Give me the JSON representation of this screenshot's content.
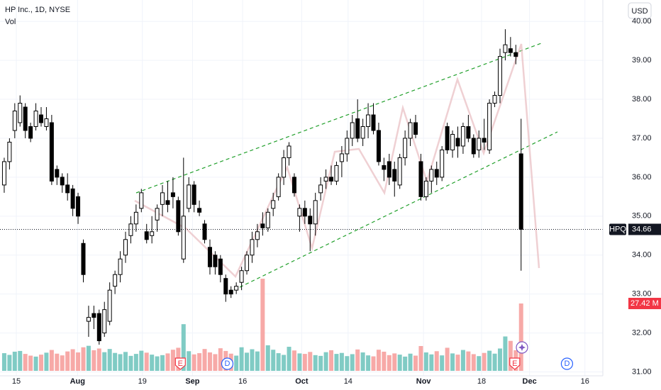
{
  "chart_data": {
    "type": "candlestick",
    "title": "HP Inc., 1D, NYSE",
    "subtitle": "Vol",
    "currency": "USD",
    "symbol": "HPQ",
    "last_price": 34.66,
    "last_price_label": "34.66",
    "last_volume_label": "27.42 M",
    "up_color": "#ffffff",
    "down_color": "#000000",
    "outline_color": "#000000",
    "volume_up_color": "#80cbc4",
    "volume_down_color": "#f7a9a7",
    "grid": true,
    "xlim": [
      -0.8,
      113.5
    ],
    "ylim": [
      30.9,
      40.55
    ],
    "xticks": [
      {
        "value": 2.3,
        "label": "15"
      },
      {
        "value": 13.9,
        "label": "Aug"
      },
      {
        "value": 26.2,
        "label": "19"
      },
      {
        "value": 35.7,
        "label": "Sep"
      },
      {
        "value": 45.2,
        "label": "16"
      },
      {
        "value": 56.4,
        "label": "Oct"
      },
      {
        "value": 65.2,
        "label": "14"
      },
      {
        "value": 79.5,
        "label": "Nov"
      },
      {
        "value": 90.5,
        "label": "18"
      },
      {
        "value": 99.6,
        "label": "Dec"
      },
      {
        "value": 110.1,
        "label": "16"
      }
    ],
    "yticks": [
      {
        "value": 31,
        "label": "31.00"
      },
      {
        "value": 32,
        "label": "32.00"
      },
      {
        "value": 33,
        "label": "33.00"
      },
      {
        "value": 34,
        "label": "34.00"
      },
      {
        "value": 35,
        "label": "35.00"
      },
      {
        "value": 36,
        "label": "36.00"
      },
      {
        "value": 37,
        "label": "37.00"
      },
      {
        "value": 38,
        "label": "38.00"
      },
      {
        "value": 39,
        "label": "39.00"
      },
      {
        "value": 40,
        "label": "40.00"
      }
    ],
    "candles": [
      [
        35.8,
        36.5,
        35.6,
        36.4
      ],
      [
        36.4,
        37.0,
        36.2,
        36.9
      ],
      [
        37.2,
        37.9,
        37.0,
        37.7
      ],
      [
        37.4,
        38.1,
        37.3,
        37.9
      ],
      [
        37.8,
        37.9,
        37.0,
        37.2
      ],
      [
        37.3,
        37.4,
        36.9,
        37.0
      ],
      [
        37.3,
        37.9,
        37.2,
        37.7
      ],
      [
        37.6,
        37.8,
        37.3,
        37.4
      ],
      [
        37.3,
        37.8,
        37.2,
        37.5
      ],
      [
        37.4,
        37.6,
        35.8,
        35.9
      ],
      [
        36.2,
        36.3,
        35.8,
        36.0
      ],
      [
        36.0,
        36.1,
        35.6,
        35.8
      ],
      [
        35.8,
        36.1,
        35.4,
        35.6
      ],
      [
        35.7,
        35.8,
        35.0,
        35.2
      ],
      [
        35.5,
        35.6,
        34.8,
        35.0
      ],
      [
        34.3,
        34.4,
        33.3,
        33.5
      ],
      [
        32.3,
        32.7,
        31.9,
        32.4
      ],
      [
        32.5,
        32.7,
        32.1,
        32.4
      ],
      [
        32.5,
        32.6,
        31.7,
        31.8
      ],
      [
        32.0,
        32.8,
        31.9,
        32.6
      ],
      [
        32.3,
        33.3,
        32.2,
        33.1
      ],
      [
        33.2,
        33.6,
        33.0,
        33.5
      ],
      [
        33.5,
        34.1,
        33.3,
        33.9
      ],
      [
        34.0,
        34.6,
        33.8,
        34.4
      ],
      [
        34.5,
        35.0,
        34.3,
        34.8
      ],
      [
        34.8,
        35.3,
        34.6,
        35.1
      ],
      [
        35.2,
        35.7,
        35.1,
        35.6
      ],
      [
        34.6,
        34.8,
        34.3,
        34.4
      ],
      [
        34.5,
        35.0,
        34.3,
        34.6
      ],
      [
        34.9,
        35.3,
        34.6,
        35.2
      ],
      [
        35.3,
        35.8,
        35.0,
        35.6
      ],
      [
        35.4,
        35.9,
        35.1,
        35.3
      ],
      [
        35.6,
        36.0,
        35.2,
        35.5
      ],
      [
        35.4,
        35.5,
        34.5,
        34.6
      ],
      [
        33.9,
        36.5,
        33.8,
        35.0
      ],
      [
        35.2,
        36.0,
        35.1,
        35.8
      ],
      [
        35.8,
        35.9,
        35.1,
        35.3
      ],
      [
        35.2,
        35.4,
        35.0,
        35.1
      ],
      [
        34.8,
        34.9,
        34.3,
        34.4
      ],
      [
        34.2,
        34.4,
        33.5,
        33.7
      ],
      [
        34.0,
        34.1,
        33.5,
        33.7
      ],
      [
        33.9,
        34.0,
        33.3,
        33.5
      ],
      [
        33.4,
        33.5,
        32.8,
        33.0
      ],
      [
        33.1,
        33.2,
        32.9,
        33.0
      ],
      [
        33.1,
        33.3,
        33.0,
        33.2
      ],
      [
        33.3,
        33.7,
        33.1,
        33.6
      ],
      [
        33.6,
        34.1,
        33.5,
        34.0
      ],
      [
        34.0,
        34.6,
        33.8,
        34.4
      ],
      [
        34.4,
        34.8,
        34.2,
        34.6
      ],
      [
        34.8,
        35.1,
        34.5,
        34.7
      ],
      [
        34.7,
        35.2,
        34.6,
        35.1
      ],
      [
        35.2,
        35.6,
        35.0,
        35.4
      ],
      [
        35.5,
        36.1,
        35.4,
        36.0
      ],
      [
        36.0,
        36.7,
        35.8,
        36.5
      ],
      [
        36.5,
        36.9,
        36.3,
        36.8
      ],
      [
        36.0,
        36.1,
        35.5,
        35.6
      ],
      [
        35.0,
        35.3,
        34.6,
        35.2
      ],
      [
        35.2,
        35.4,
        34.8,
        35.0
      ],
      [
        35.0,
        35.2,
        34.1,
        34.8
      ],
      [
        34.8,
        35.6,
        34.5,
        35.4
      ],
      [
        35.6,
        36.0,
        35.4,
        35.8
      ],
      [
        35.9,
        36.2,
        35.7,
        36.0
      ],
      [
        36.0,
        36.3,
        35.8,
        35.9
      ],
      [
        35.9,
        36.4,
        35.8,
        36.3
      ],
      [
        36.4,
        36.8,
        36.0,
        36.6
      ],
      [
        36.6,
        37.2,
        36.4,
        37.0
      ],
      [
        37.0,
        37.6,
        36.8,
        37.4
      ],
      [
        37.5,
        38.0,
        36.9,
        37.0
      ],
      [
        37.0,
        37.5,
        36.8,
        37.3
      ],
      [
        37.3,
        37.9,
        37.0,
        37.6
      ],
      [
        37.6,
        37.9,
        37.1,
        37.2
      ],
      [
        37.2,
        37.4,
        36.3,
        36.4
      ],
      [
        36.3,
        36.5,
        35.9,
        36.2
      ],
      [
        36.4,
        36.6,
        35.8,
        36.0
      ],
      [
        36.2,
        36.4,
        35.5,
        35.9
      ],
      [
        35.8,
        36.6,
        35.7,
        36.5
      ],
      [
        36.5,
        37.2,
        36.3,
        37.0
      ],
      [
        37.0,
        37.5,
        36.8,
        37.4
      ],
      [
        37.4,
        37.6,
        37.0,
        37.1
      ],
      [
        36.4,
        36.6,
        35.4,
        35.5
      ],
      [
        35.5,
        36.0,
        35.4,
        35.9
      ],
      [
        35.9,
        36.3,
        35.6,
        36.2
      ],
      [
        36.2,
        36.4,
        35.8,
        36.0
      ],
      [
        36.0,
        36.8,
        35.9,
        36.7
      ],
      [
        37.3,
        37.4,
        36.6,
        36.7
      ],
      [
        36.7,
        37.2,
        36.5,
        37.1
      ],
      [
        37.0,
        37.3,
        36.5,
        36.8
      ],
      [
        36.8,
        37.4,
        36.6,
        37.3
      ],
      [
        37.3,
        37.6,
        36.9,
        37.0
      ],
      [
        37.0,
        37.1,
        36.5,
        36.6
      ],
      [
        36.7,
        37.2,
        36.5,
        37.0
      ],
      [
        37.0,
        37.5,
        36.7,
        36.9
      ],
      [
        36.7,
        38.0,
        36.6,
        37.9
      ],
      [
        37.9,
        38.2,
        37.8,
        38.1
      ],
      [
        38.1,
        39.3,
        37.9,
        39.1
      ],
      [
        39.2,
        39.8,
        39.0,
        39.4
      ],
      [
        39.3,
        39.6,
        39.1,
        39.2
      ],
      [
        39.2,
        39.4,
        38.9,
        39.1
      ],
      [
        36.6,
        37.5,
        33.6,
        34.66
      ]
    ],
    "volumes": [
      7.2,
      6.5,
      7.8,
      8.1,
      6.9,
      6.2,
      5.8,
      6.6,
      7.4,
      8.5,
      7.0,
      6.3,
      7.9,
      8.8,
      7.5,
      9.6,
      10.2,
      8.4,
      9.1,
      7.6,
      8.9,
      7.3,
      6.8,
      7.7,
      6.1,
      6.9,
      8.2,
      7.4,
      6.6,
      5.9,
      6.4,
      7.1,
      8.6,
      9.4,
      19.0,
      8.0,
      6.7,
      7.2,
      8.9,
      7.5,
      6.8,
      9.2,
      8.1,
      7.0,
      6.2,
      9.6,
      7.4,
      8.8,
      7.9,
      37.5,
      10.4,
      8.6,
      7.2,
      6.5,
      9.8,
      8.3,
      7.1,
      6.9,
      7.7,
      6.4,
      6.1,
      7.6,
      8.4,
      6.9,
      7.3,
      6.0,
      6.8,
      8.7,
      7.5,
      6.3,
      5.9,
      8.6,
      7.8,
      6.4,
      7.1,
      6.6,
      5.8,
      7.0,
      6.2,
      10.1,
      7.5,
      6.7,
      8.0,
      6.3,
      9.4,
      7.1,
      6.6,
      8.5,
      7.9,
      6.8,
      6.0,
      7.3,
      8.2,
      7.0,
      9.1,
      14.0,
      12.2,
      8.4,
      27.42
    ],
    "events": [
      {
        "label": "E",
        "x": 33.4
      },
      {
        "label": "D",
        "x": 42.3
      },
      {
        "label": "E",
        "x": 96.8
      },
      {
        "label": "D",
        "x": 106.7
      }
    ]
  }
}
